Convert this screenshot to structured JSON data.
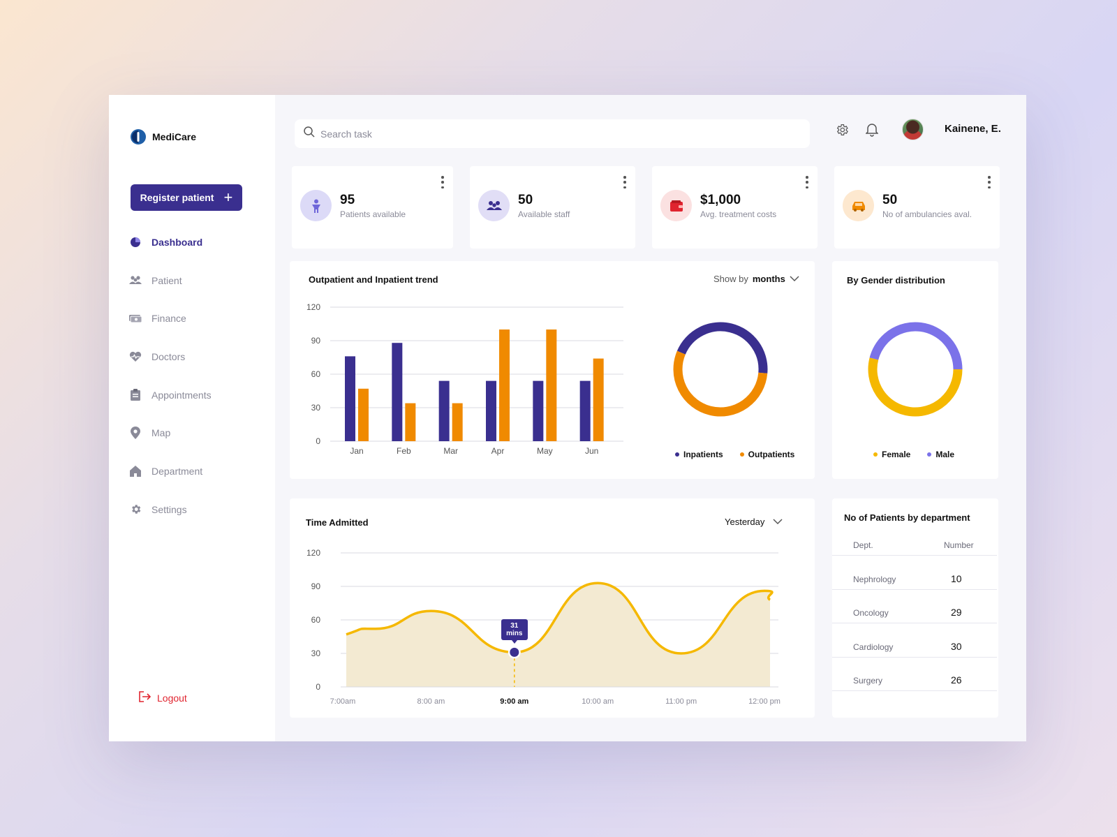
{
  "app": {
    "name": "MediCare"
  },
  "sidebar": {
    "register_label": "Register patient",
    "items": [
      {
        "label": "Dashboard",
        "icon": "pie-chart-icon"
      },
      {
        "label": "Patient",
        "icon": "people-icon"
      },
      {
        "label": "Finance",
        "icon": "cash-icon"
      },
      {
        "label": "Doctors",
        "icon": "heart-pulse-icon"
      },
      {
        "label": "Appointments",
        "icon": "clipboard-icon"
      },
      {
        "label": "Map",
        "icon": "map-pin-icon"
      },
      {
        "label": "Department",
        "icon": "home-icon"
      },
      {
        "label": "Settings",
        "icon": "gear-icon"
      }
    ],
    "logout_label": "Logout"
  },
  "header": {
    "search_placeholder": "Search task",
    "username": "Kainene, E."
  },
  "stats": [
    {
      "value": "95",
      "label": "Patients available",
      "icon": "person-icon",
      "bg": "#dcdaf7",
      "fg": "#6f66d9"
    },
    {
      "value": "50",
      "label": "Available staff",
      "icon": "group-icon",
      "bg": "#e1def6",
      "fg": "#3a2f8f"
    },
    {
      "value": "$1,000",
      "label": "Avg. treatment costs",
      "icon": "wallet-icon",
      "bg": "#fbe1e1",
      "fg": "#e0242f"
    },
    {
      "value": "50",
      "label": "No of ambulancies aval.",
      "icon": "car-icon",
      "bg": "#fde8cf",
      "fg": "#f08a00"
    }
  ],
  "trend": {
    "title": "Outpatient and Inpatient trend",
    "dropdown_prefix": "Show by",
    "dropdown_value": "months",
    "legend": [
      "Inpatients",
      "Outpatients"
    ]
  },
  "gender": {
    "title": "By Gender distribution",
    "legend": [
      "Female",
      "Male"
    ]
  },
  "admitted": {
    "title": "Time Admitted",
    "dropdown_value": "Yesterday",
    "tooltip_value": "31",
    "tooltip_unit": "mins"
  },
  "departments": {
    "title": "No of Patients by department",
    "col_dept": "Dept.",
    "col_number": "Number",
    "rows": [
      {
        "dept": "Nephrology",
        "number": "10"
      },
      {
        "dept": "Oncology",
        "number": "29"
      },
      {
        "dept": "Cardiology",
        "number": "30"
      },
      {
        "dept": "Surgery",
        "number": "26"
      }
    ]
  },
  "colors": {
    "primary": "#3a2f8f",
    "orange": "#f08a00",
    "yellow": "#f5b800",
    "male": "#7b72e9",
    "logout": "#e0242f"
  },
  "chart_data": [
    {
      "type": "bar",
      "categories": [
        "Jan",
        "Feb",
        "Mar",
        "Apr",
        "May",
        "Jun"
      ],
      "series": [
        {
          "name": "Inpatients",
          "color": "#3a2f8f",
          "values": [
            76,
            88,
            54,
            54,
            54,
            54
          ]
        },
        {
          "name": "Outpatients",
          "color": "#f08a00",
          "values": [
            47,
            34,
            34,
            100,
            100,
            74
          ]
        }
      ],
      "yticks": [
        0,
        30,
        60,
        90,
        120
      ],
      "ylim": [
        0,
        120
      ],
      "grid": true
    },
    {
      "type": "pie",
      "labels": [
        "Inpatients",
        "Outpatients"
      ],
      "values": [
        45,
        55
      ],
      "colors": [
        "#3a2f8f",
        "#f08a00"
      ]
    },
    {
      "type": "pie",
      "labels": [
        "Female",
        "Male"
      ],
      "values": [
        54,
        46
      ],
      "colors": [
        "#f5b800",
        "#7b72e9"
      ]
    },
    {
      "type": "area",
      "x": [
        "7:00am",
        "8:00 am",
        "9:00 am",
        "10:00 am",
        "11:00 pm",
        "12:00 pm"
      ],
      "y": [
        52,
        68,
        31,
        93,
        30,
        86
      ],
      "highlight": {
        "x": "9:00 am",
        "y": 31
      },
      "yticks": [
        0,
        30,
        60,
        90,
        120
      ],
      "ylim": [
        0,
        120
      ],
      "grid": true
    }
  ]
}
